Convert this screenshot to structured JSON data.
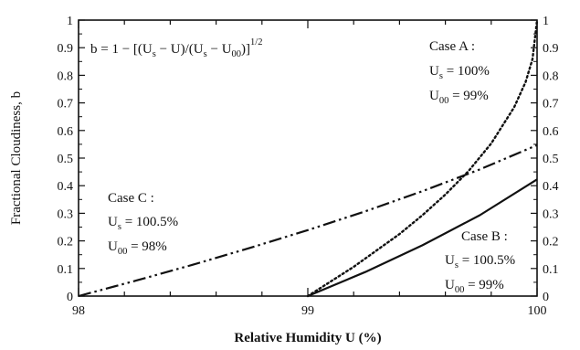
{
  "chart_data": {
    "type": "line",
    "title": "",
    "xlabel": "Relative Humidity U (%)",
    "ylabel": "Fractional Cloudiness, b",
    "xlim": [
      98,
      100
    ],
    "ylim": [
      0,
      1
    ],
    "x_ticks": [
      "98",
      "99",
      "100"
    ],
    "y_ticks": [
      "0",
      "0.1",
      "0.2",
      "0.3",
      "0.4",
      "0.5",
      "0.6",
      "0.7",
      "0.8",
      "0.9",
      "1"
    ],
    "grid": false,
    "formula": {
      "b_eq": "b = 1 − [(U",
      "s1": "s",
      "mid1": " − U)/(U",
      "s2": "s",
      "mid2": " − U",
      "s3": "00",
      "end": ")]",
      "exp": "1/2"
    },
    "annotations": [
      {
        "id": "A",
        "title": "Case A :",
        "us_label": "U",
        "us_sub": "s",
        "us_value": " = 100%",
        "u00_label": "U",
        "u00_sub": "00",
        "u00_value": " = 99%"
      },
      {
        "id": "B",
        "title": "Case B :",
        "us_label": "U",
        "us_sub": "s",
        "us_value": " = 100.5%",
        "u00_label": "U",
        "u00_sub": "00",
        "u00_value": " = 99%"
      },
      {
        "id": "C",
        "title": "Case C :",
        "us_label": "U",
        "us_sub": "s",
        "us_value": " = 100.5%",
        "u00_label": "U",
        "u00_sub": "00",
        "u00_value": " = 98%"
      }
    ],
    "series": [
      {
        "id": "A",
        "style": "dotted",
        "x": [
          99.0,
          99.2,
          99.4,
          99.5,
          99.6,
          99.7,
          99.8,
          99.9,
          99.95,
          99.98,
          100.0
        ],
        "values": [
          0,
          0.106,
          0.225,
          0.293,
          0.368,
          0.452,
          0.553,
          0.684,
          0.776,
          0.859,
          1.0
        ]
      },
      {
        "id": "B",
        "style": "solid",
        "x": [
          99.0,
          99.25,
          99.5,
          99.75,
          100.0
        ],
        "values": [
          0,
          0.087,
          0.184,
          0.293,
          0.423
        ]
      },
      {
        "id": "C",
        "style": "dash-dot-dot",
        "x": [
          98.0,
          98.25,
          98.5,
          98.75,
          99.0,
          99.25,
          99.5,
          99.75,
          100.0
        ],
        "values": [
          0,
          0.056,
          0.114,
          0.175,
          0.239,
          0.307,
          0.38,
          0.459,
          0.547
        ]
      }
    ]
  }
}
